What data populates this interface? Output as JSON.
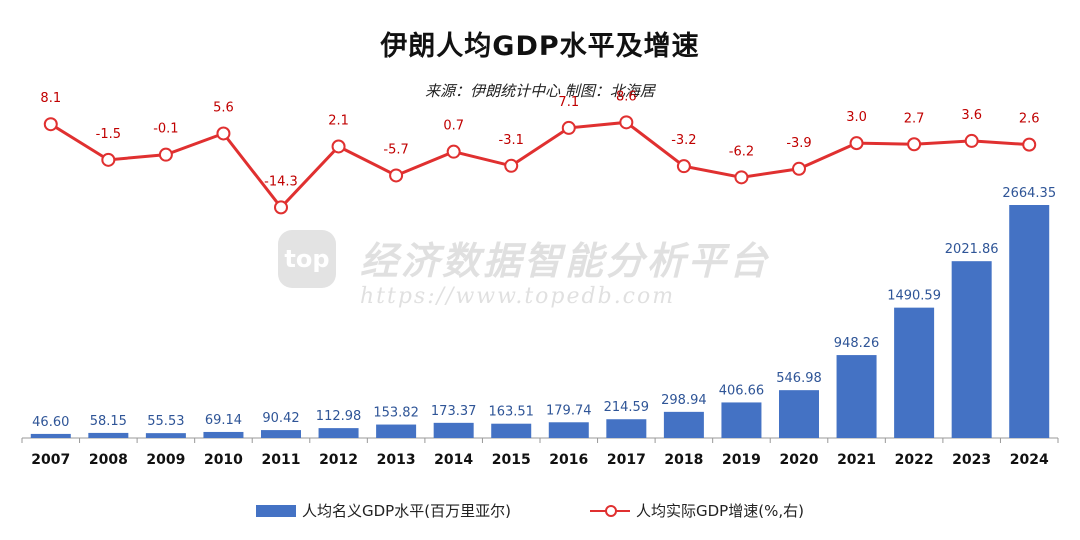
{
  "header": {
    "title": "伊朗人均GDP水平及增速",
    "subtitle": "来源：伊朗统计中心 制图：北海居"
  },
  "watermark": {
    "logo_text": "top",
    "name": "经济数据智能分析平台",
    "url": "https://www.topedb.com"
  },
  "colors": {
    "bar": "#4472C4",
    "bar_label": "#2F5597",
    "line": "#E03030",
    "line_label": "#C00000",
    "axis": "#999999"
  },
  "chart_data": {
    "type": "bar",
    "categories": [
      "2007",
      "2008",
      "2009",
      "2010",
      "2011",
      "2012",
      "2013",
      "2014",
      "2015",
      "2016",
      "2017",
      "2018",
      "2019",
      "2020",
      "2021",
      "2022",
      "2023",
      "2024"
    ],
    "series": [
      {
        "name": "人均名义GDP水平(百万里亚尔)",
        "type": "bar",
        "values": [
          46.6,
          58.15,
          55.53,
          69.14,
          90.42,
          112.98,
          153.82,
          173.37,
          163.51,
          179.74,
          214.59,
          298.94,
          406.66,
          546.98,
          948.26,
          1490.59,
          2021.86,
          2664.35
        ],
        "labels": [
          "46.60",
          "58.15",
          "55.53",
          "69.14",
          "90.42",
          "112.98",
          "153.82",
          "173.37",
          "163.51",
          "179.74",
          "214.59",
          "298.94",
          "406.66",
          "546.98",
          "948.26",
          "1490.59",
          "2021.86",
          "2664.35"
        ]
      },
      {
        "name": "人均实际GDP增速(%,右)",
        "type": "line",
        "axis": "right",
        "values": [
          8.1,
          -1.5,
          -0.1,
          5.6,
          -14.3,
          2.1,
          -5.7,
          0.7,
          -3.1,
          7.1,
          8.6,
          -3.2,
          -6.2,
          -3.9,
          3.0,
          2.7,
          3.6,
          2.6
        ],
        "labels": [
          "8.1",
          "-1.5",
          "-0.1",
          "5.6",
          "-14.3",
          "2.1",
          "-5.7",
          "0.7",
          "-3.1",
          "7.1",
          "8.6",
          "-3.2",
          "-6.2",
          "-3.9",
          "3.0",
          "2.7",
          "3.6",
          "2.6"
        ]
      }
    ],
    "ylim": [
      0,
      2700
    ],
    "y2lim": [
      -50,
      20
    ],
    "grid": false,
    "legend": "bottom"
  }
}
